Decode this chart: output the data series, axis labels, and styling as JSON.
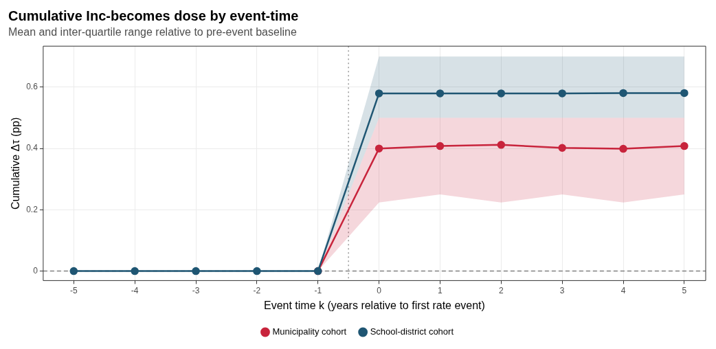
{
  "chart_data": {
    "type": "line",
    "title": "Cumulative Inc-becomes dose by event-time",
    "subtitle": "Mean and inter-quartile range relative to pre-event baseline",
    "xlabel": "Event time k (years relative to first rate event)",
    "ylabel": "Cumulative Δτ (pp)",
    "x": [
      -5,
      -4,
      -3,
      -2,
      -1,
      0,
      1,
      2,
      3,
      4,
      5
    ],
    "series": [
      {
        "name": "Municipality cohort",
        "color": "#c8243c",
        "values": [
          null,
          null,
          null,
          null,
          0,
          0.4,
          0.408,
          0.412,
          0.402,
          0.399,
          0.408
        ],
        "lower": [
          0,
          0,
          0,
          0,
          0,
          0.224,
          0.25,
          0.224,
          0.25,
          0.224,
          0.25
        ],
        "upper": [
          0,
          0,
          0,
          0,
          0,
          0.5,
          0.5,
          0.5,
          0.5,
          0.5,
          0.5
        ]
      },
      {
        "name": "School-district cohort",
        "color": "#1f5673",
        "values": [
          0,
          0,
          0,
          0,
          0,
          0.58,
          0.58,
          0.58,
          0.58,
          0.581,
          0.581
        ],
        "lower": [
          0,
          0,
          0,
          0,
          0,
          0.5,
          0.5,
          0.5,
          0.5,
          0.5,
          0.5
        ],
        "upper": [
          0,
          0,
          0,
          0,
          0,
          0.7,
          0.7,
          0.7,
          0.7,
          0.7,
          0.7
        ]
      }
    ],
    "xlim": [
      -5.5,
      5.35
    ],
    "ylim": [
      -0.031,
      0.734
    ],
    "xticks": [
      -5,
      -4,
      -3,
      -2,
      -1,
      0,
      1,
      2,
      3,
      4,
      5
    ],
    "yticks": [
      0.0,
      0.2,
      0.4,
      0.6
    ],
    "ref_lines": [
      {
        "axis": "x",
        "value": -0.5,
        "line_style": "dotted",
        "color": "#999999"
      },
      {
        "axis": "y",
        "value": 0,
        "line_style": "dashed",
        "color": "#808080"
      }
    ],
    "grid": true,
    "legend": "bottom",
    "marker": "circle",
    "line_style": "solid"
  }
}
